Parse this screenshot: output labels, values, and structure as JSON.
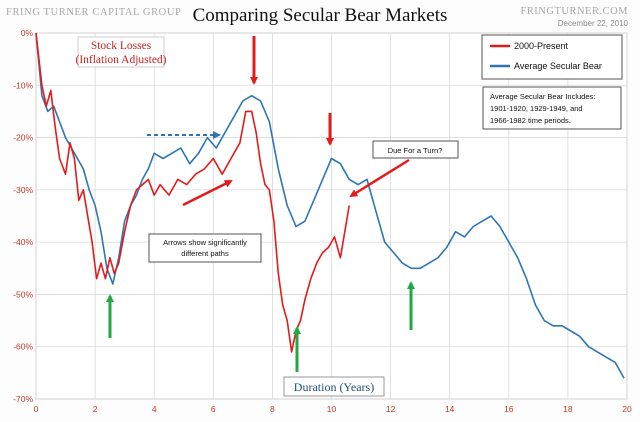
{
  "header": {
    "brand_left": "FRING TURNER CAPITAL GROUP",
    "title": "Comparing Secular Bear Markets",
    "brand_right": "FRINGTURNER.COM",
    "date": "December 22, 2010"
  },
  "colors": {
    "present": "#e31b1b",
    "average": "#2e75b6",
    "green_arrow": "#22a845",
    "label_red": "#cc2020",
    "label_blue": "#1f4e79"
  },
  "labels": {
    "stock_losses_1": "Stock Losses",
    "stock_losses_2": "(Inflation Adjusted)",
    "duration": "Duration (Years)",
    "note_1": "Arrows show significantly",
    "note_2": "different paths",
    "due": "Due For a Turn?",
    "info_1": "Average Secular Bear Includes:",
    "info_2": "1901-1920, 1929-1949, and",
    "info_3": "1966-1982 time periods."
  },
  "legend": {
    "items": [
      "2000-Present",
      "Average Secular Bear"
    ]
  },
  "chart_data": {
    "type": "line",
    "title": "Comparing Secular Bear Markets",
    "xlabel": "Duration (Years)",
    "ylabel": "Stock Losses (Inflation Adjusted)",
    "xlim": [
      0,
      20
    ],
    "ylim": [
      -70,
      0
    ],
    "x_ticks": [
      "0",
      "2",
      "4",
      "6",
      "8",
      "10",
      "12",
      "14",
      "16",
      "18",
      "20"
    ],
    "y_ticks": [
      "0%",
      "-10%",
      "-20%",
      "-30%",
      "-40%",
      "-50%",
      "-60%",
      "-70%"
    ],
    "grid": true,
    "legend_position": "top-right",
    "series": [
      {
        "name": "2000-Present",
        "points": [
          [
            0,
            0
          ],
          [
            0.2,
            -10
          ],
          [
            0.35,
            -14
          ],
          [
            0.5,
            -11
          ],
          [
            0.65,
            -18
          ],
          [
            0.8,
            -24
          ],
          [
            1.0,
            -27
          ],
          [
            1.15,
            -21
          ],
          [
            1.3,
            -24
          ],
          [
            1.45,
            -32
          ],
          [
            1.6,
            -30
          ],
          [
            1.75,
            -35
          ],
          [
            1.9,
            -40
          ],
          [
            2.05,
            -47
          ],
          [
            2.2,
            -44
          ],
          [
            2.35,
            -47
          ],
          [
            2.5,
            -43
          ],
          [
            2.65,
            -46
          ],
          [
            2.8,
            -44
          ],
          [
            3.0,
            -38
          ],
          [
            3.2,
            -33
          ],
          [
            3.4,
            -30
          ],
          [
            3.6,
            -29
          ],
          [
            3.8,
            -28
          ],
          [
            4.0,
            -31
          ],
          [
            4.2,
            -29
          ],
          [
            4.5,
            -31
          ],
          [
            4.8,
            -28
          ],
          [
            5.1,
            -29
          ],
          [
            5.4,
            -27
          ],
          [
            5.7,
            -26
          ],
          [
            6.0,
            -24
          ],
          [
            6.3,
            -27
          ],
          [
            6.6,
            -24
          ],
          [
            6.9,
            -21
          ],
          [
            7.1,
            -15
          ],
          [
            7.3,
            -15
          ],
          [
            7.45,
            -19
          ],
          [
            7.6,
            -25
          ],
          [
            7.75,
            -29
          ],
          [
            7.9,
            -30
          ],
          [
            8.05,
            -36
          ],
          [
            8.2,
            -46
          ],
          [
            8.35,
            -52
          ],
          [
            8.5,
            -55
          ],
          [
            8.65,
            -61
          ],
          [
            8.8,
            -57
          ],
          [
            8.95,
            -55
          ],
          [
            9.1,
            -51
          ],
          [
            9.3,
            -47
          ],
          [
            9.5,
            -44
          ],
          [
            9.7,
            -42
          ],
          [
            9.9,
            -41
          ],
          [
            10.1,
            -39
          ],
          [
            10.3,
            -43
          ],
          [
            10.45,
            -38
          ],
          [
            10.6,
            -33
          ]
        ]
      },
      {
        "name": "Average Secular Bear",
        "points": [
          [
            0,
            0
          ],
          [
            0.2,
            -12
          ],
          [
            0.4,
            -15
          ],
          [
            0.6,
            -14
          ],
          [
            0.8,
            -17
          ],
          [
            1.0,
            -20
          ],
          [
            1.2,
            -22
          ],
          [
            1.4,
            -24
          ],
          [
            1.6,
            -26
          ],
          [
            1.8,
            -30
          ],
          [
            2.0,
            -33
          ],
          [
            2.2,
            -38
          ],
          [
            2.4,
            -45
          ],
          [
            2.6,
            -48
          ],
          [
            2.8,
            -43
          ],
          [
            3.0,
            -36
          ],
          [
            3.2,
            -33
          ],
          [
            3.4,
            -31
          ],
          [
            3.6,
            -28
          ],
          [
            3.8,
            -26
          ],
          [
            4.0,
            -23
          ],
          [
            4.3,
            -24
          ],
          [
            4.6,
            -23
          ],
          [
            4.9,
            -22
          ],
          [
            5.2,
            -25
          ],
          [
            5.5,
            -23
          ],
          [
            5.8,
            -20
          ],
          [
            6.1,
            -22
          ],
          [
            6.4,
            -19
          ],
          [
            6.7,
            -16
          ],
          [
            7.0,
            -13
          ],
          [
            7.3,
            -12
          ],
          [
            7.6,
            -13
          ],
          [
            7.9,
            -17
          ],
          [
            8.2,
            -26
          ],
          [
            8.5,
            -33
          ],
          [
            8.8,
            -37
          ],
          [
            9.1,
            -36
          ],
          [
            9.4,
            -32
          ],
          [
            9.7,
            -28
          ],
          [
            10.0,
            -24
          ],
          [
            10.3,
            -25
          ],
          [
            10.6,
            -28
          ],
          [
            10.9,
            -29
          ],
          [
            11.2,
            -28
          ],
          [
            11.5,
            -34
          ],
          [
            11.8,
            -40
          ],
          [
            12.1,
            -42
          ],
          [
            12.4,
            -44
          ],
          [
            12.7,
            -45
          ],
          [
            13.0,
            -45
          ],
          [
            13.3,
            -44
          ],
          [
            13.6,
            -43
          ],
          [
            13.9,
            -41
          ],
          [
            14.2,
            -38
          ],
          [
            14.5,
            -39
          ],
          [
            14.8,
            -37
          ],
          [
            15.1,
            -36
          ],
          [
            15.4,
            -35
          ],
          [
            15.7,
            -37
          ],
          [
            16.0,
            -40
          ],
          [
            16.3,
            -43
          ],
          [
            16.6,
            -47
          ],
          [
            16.9,
            -52
          ],
          [
            17.2,
            -55
          ],
          [
            17.5,
            -56
          ],
          [
            17.8,
            -56
          ],
          [
            18.1,
            -57
          ],
          [
            18.4,
            -58
          ],
          [
            18.7,
            -60
          ],
          [
            19.0,
            -61
          ],
          [
            19.3,
            -62
          ],
          [
            19.6,
            -63
          ],
          [
            19.9,
            -66
          ]
        ]
      }
    ]
  }
}
